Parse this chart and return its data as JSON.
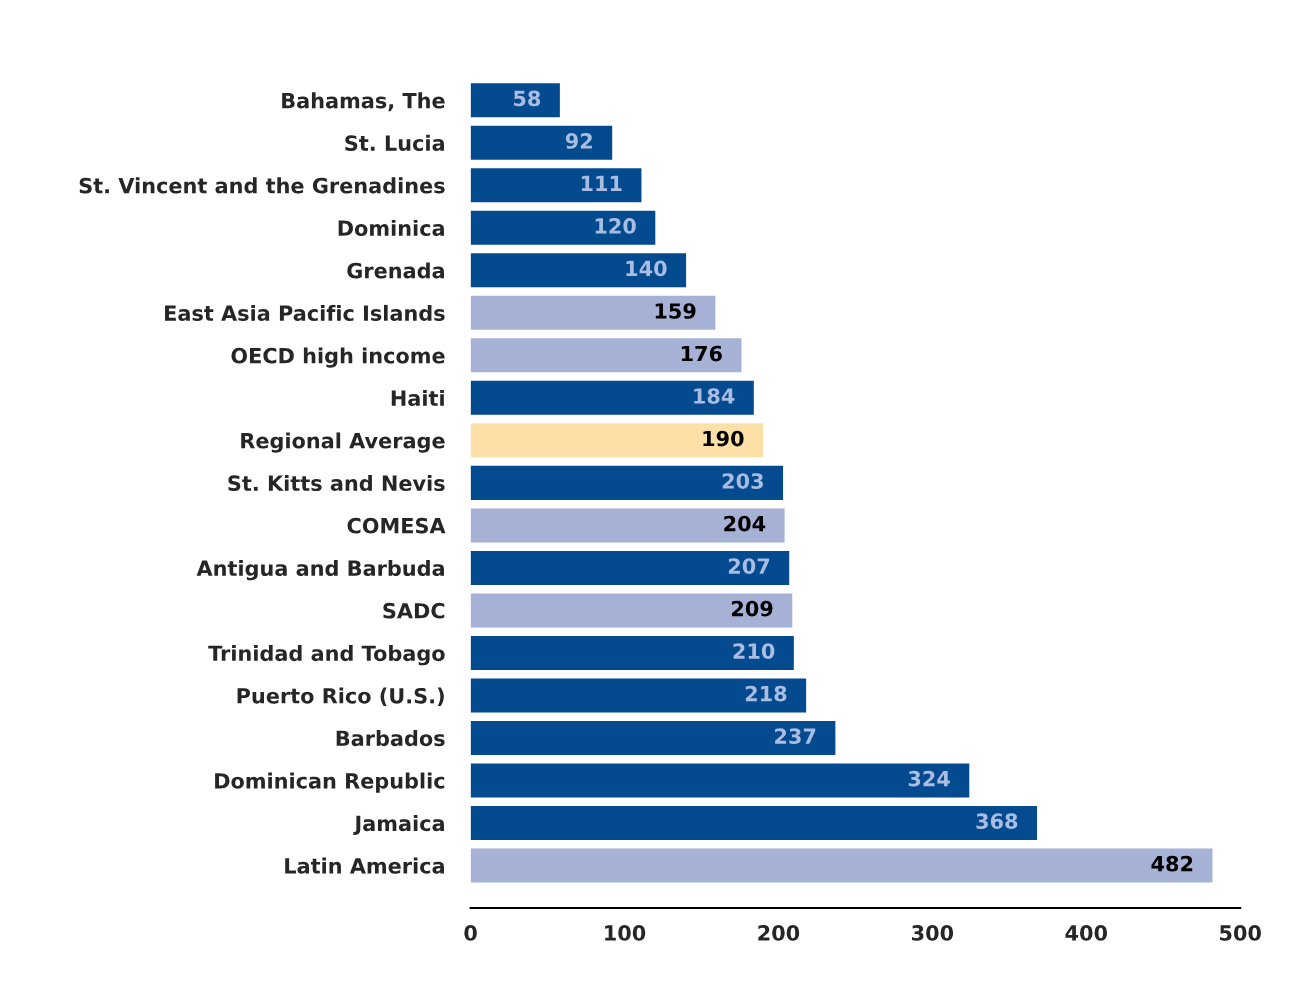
{
  "chart_data": {
    "type": "bar",
    "orientation": "horizontal",
    "categories": [
      "Bahamas, The",
      "St. Lucia",
      "St. Vincent and the Grenadines",
      "Dominica",
      "Grenada",
      "East Asia Pacific Islands",
      "OECD high income",
      "Haiti",
      "Regional Average",
      "St. Kitts and Nevis",
      "COMESA",
      "Antigua and Barbuda",
      "SADC",
      "Trinidad and Tobago",
      "Puerto Rico (U.S.)",
      "Barbados",
      "Dominican Republic",
      "Jamaica",
      "Latin America"
    ],
    "values": [
      58,
      92,
      111,
      120,
      140,
      159,
      176,
      184,
      190,
      203,
      204,
      207,
      209,
      210,
      218,
      237,
      324,
      368,
      482
    ],
    "colors": [
      "#034a8f",
      "#034a8f",
      "#034a8f",
      "#034a8f",
      "#034a8f",
      "#a6b1d6",
      "#a6b1d6",
      "#034a8f",
      "#fddfa8",
      "#034a8f",
      "#a6b1d6",
      "#034a8f",
      "#a6b1d6",
      "#034a8f",
      "#034a8f",
      "#034a8f",
      "#034a8f",
      "#034a8f",
      "#a6b1d6"
    ],
    "xlim": [
      0,
      500
    ],
    "xticks": [
      0,
      100,
      200,
      300,
      400,
      500
    ],
    "data_labels": true,
    "grid": false,
    "legend": false
  }
}
